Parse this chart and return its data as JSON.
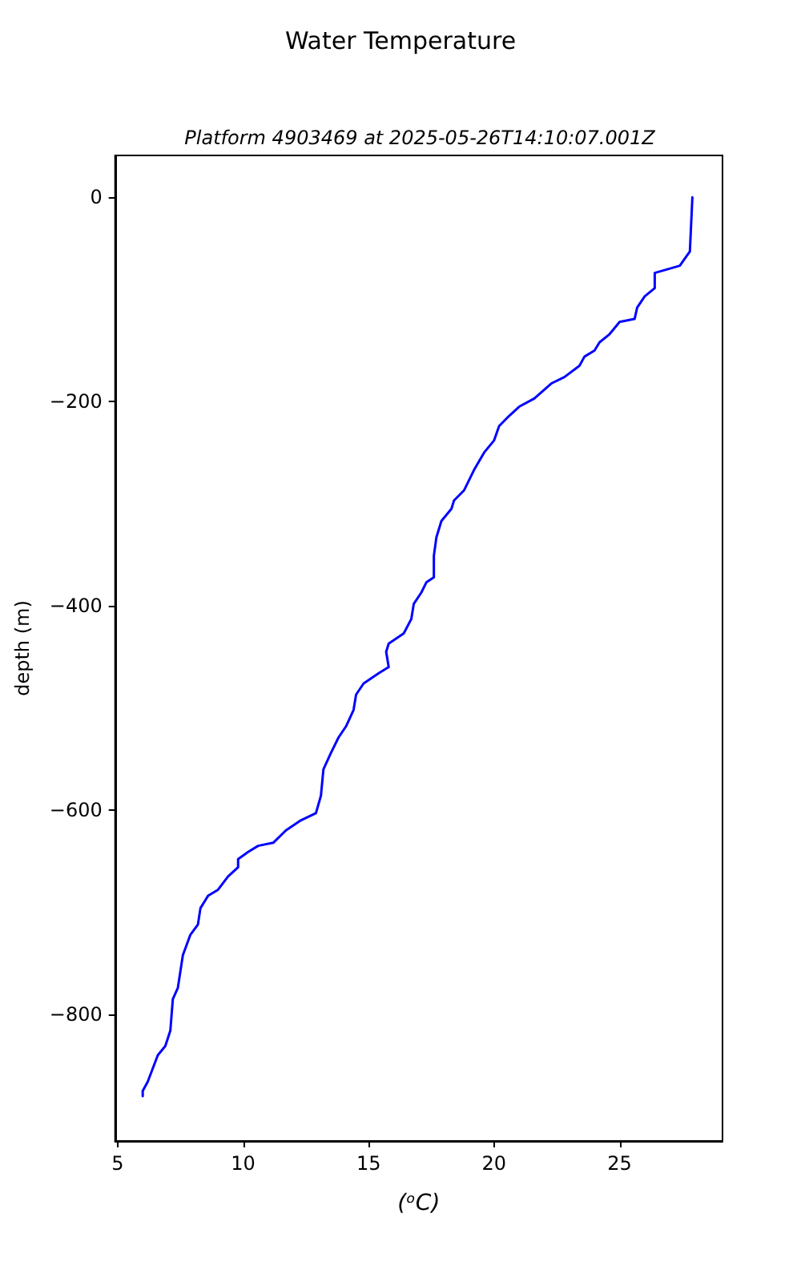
{
  "chart_data": {
    "type": "line",
    "title": "Water Temperature",
    "subtitle": "Platform 4903469 at 2025-05-26T14:10:07.001Z",
    "xlabel": "(ᵒC)",
    "ylabel": "depth (m)",
    "xlim": [
      4.9,
      29.1
    ],
    "xticks": [
      5,
      10,
      15,
      20,
      25
    ],
    "ylim": [
      -924,
      41
    ],
    "yticks": [
      {
        "value": 0,
        "label": "0"
      },
      {
        "value": -200,
        "label": "−200"
      },
      {
        "value": -400,
        "label": "−400"
      },
      {
        "value": -600,
        "label": "−600"
      },
      {
        "value": -800,
        "label": "−800"
      }
    ],
    "grid": false,
    "marker": "none",
    "line_style": "solid",
    "series": [
      {
        "color": "#0000ff",
        "x": [
          27.9,
          27.8,
          27.6,
          27.4,
          26.4,
          26.4,
          26.0,
          25.7,
          25.6,
          25.0,
          24.6,
          24.2,
          24.0,
          23.6,
          23.4,
          22.8,
          22.3,
          21.6,
          21.0,
          20.6,
          20.2,
          20.0,
          19.6,
          19.2,
          18.8,
          18.4,
          18.3,
          17.9,
          17.7,
          17.6,
          17.6,
          17.3,
          17.1,
          16.8,
          16.7,
          16.4,
          15.8,
          15.7,
          15.8,
          15.4,
          14.8,
          14.5,
          14.4,
          14.1,
          13.8,
          13.5,
          13.2,
          13.1,
          12.9,
          12.3,
          11.7,
          11.2,
          10.6,
          10.2,
          9.8,
          9.8,
          9.4,
          9.0,
          8.6,
          8.3,
          8.2,
          7.9,
          7.6,
          7.4,
          7.2,
          7.1,
          6.9,
          6.6,
          6.4,
          6.2,
          6.0,
          6.0
        ],
        "values": [
          0,
          -53,
          -60,
          -67,
          -74,
          -89,
          -97,
          -108,
          -119,
          -122,
          -134,
          -142,
          -150,
          -156,
          -165,
          -176,
          -182,
          -197,
          -205,
          -214,
          -224,
          -238,
          -250,
          -267,
          -287,
          -297,
          -305,
          -317,
          -333,
          -351,
          -372,
          -377,
          -387,
          -398,
          -413,
          -427,
          -437,
          -445,
          -460,
          -466,
          -476,
          -487,
          -502,
          -518,
          -529,
          -544,
          -560,
          -586,
          -603,
          -610,
          -620,
          -632,
          -635,
          -641,
          -648,
          -656,
          -665,
          -678,
          -684,
          -696,
          -712,
          -722,
          -742,
          -774,
          -785,
          -816,
          -831,
          -840,
          -853,
          -866,
          -875,
          -880
        ]
      }
    ]
  }
}
